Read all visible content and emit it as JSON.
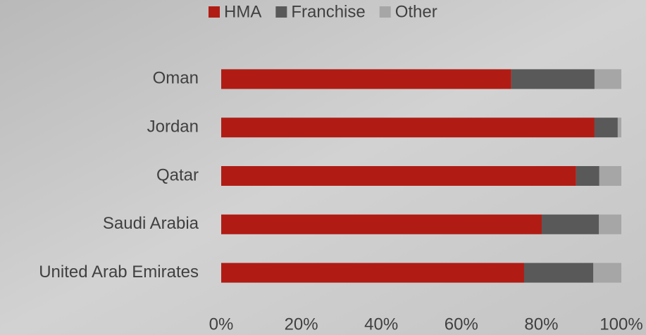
{
  "chart_data": {
    "type": "stacked_bar_horizontal",
    "categories": [
      "Oman",
      "Jordan",
      "Qatar",
      "Saudi Arabia",
      "United Arab Emirates"
    ],
    "series": [
      {
        "name": "HMA",
        "color": "#b01c14",
        "values": [
          72.5,
          93.3,
          88.7,
          80.1,
          75.7
        ]
      },
      {
        "name": "Franchise",
        "color": "#595959",
        "values": [
          20.8,
          5.8,
          5.8,
          14.3,
          17.3
        ]
      },
      {
        "name": "Other",
        "color": "#a6a6a6",
        "values": [
          6.7,
          0.9,
          5.5,
          5.6,
          7.0
        ]
      }
    ],
    "xlim": [
      0,
      100
    ],
    "xticks": [
      {
        "value": 0,
        "label": "0%"
      },
      {
        "value": 20,
        "label": "20%"
      },
      {
        "value": 40,
        "label": "40%"
      },
      {
        "value": 60,
        "label": "60%"
      },
      {
        "value": 80,
        "label": "80%"
      },
      {
        "value": 100,
        "label": "100%"
      }
    ],
    "legend": "top"
  }
}
